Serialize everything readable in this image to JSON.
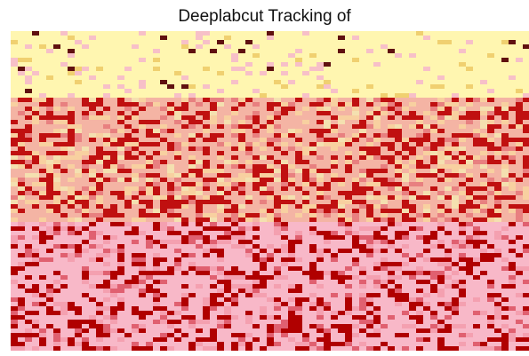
{
  "title": "Deeplabcut Tracking of"
}
